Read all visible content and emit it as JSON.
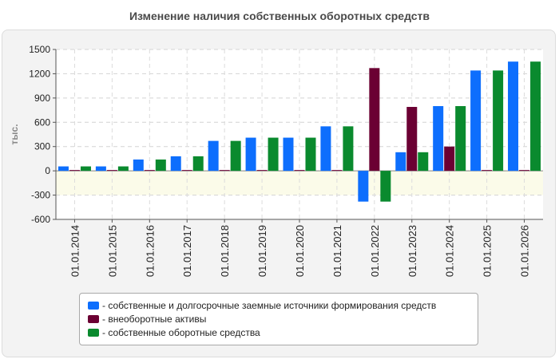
{
  "chart_data": {
    "type": "bar",
    "title": "Изменение наличия собственных оборотных средств",
    "ylabel": "тыс.",
    "xlabel": "",
    "ylim": [
      -600,
      1500
    ],
    "yticks": [
      1500,
      1200,
      900,
      600,
      300,
      0,
      -300,
      -600
    ],
    "grid": true,
    "legend_position": "bottom",
    "categories": [
      "01.01.2014",
      "01.01.2015",
      "01.01.2016",
      "01.01.2017",
      "01.01.2018",
      "01.01.2019",
      "01.01.2020",
      "01.01.2021",
      "01.01.2022",
      "01.01.2023",
      "01.01.2024",
      "01.01.2025",
      "01.01.2026"
    ],
    "series": [
      {
        "name": "- собственные и долгосрочные заемные источники формирования средств",
        "color": "#0d6efd",
        "values": [
          55,
          55,
          140,
          180,
          370,
          410,
          410,
          550,
          -380,
          230,
          800,
          1240,
          1350
        ]
      },
      {
        "name": "- внеоборотные активы",
        "color": "#6b0033",
        "values": [
          10,
          10,
          10,
          10,
          10,
          10,
          10,
          10,
          1270,
          790,
          300,
          10,
          10
        ]
      },
      {
        "name": "- собственные оборотные средства",
        "color": "#0a8a2e",
        "values": [
          55,
          55,
          140,
          180,
          370,
          410,
          410,
          550,
          -380,
          230,
          800,
          1240,
          1350
        ]
      }
    ]
  }
}
